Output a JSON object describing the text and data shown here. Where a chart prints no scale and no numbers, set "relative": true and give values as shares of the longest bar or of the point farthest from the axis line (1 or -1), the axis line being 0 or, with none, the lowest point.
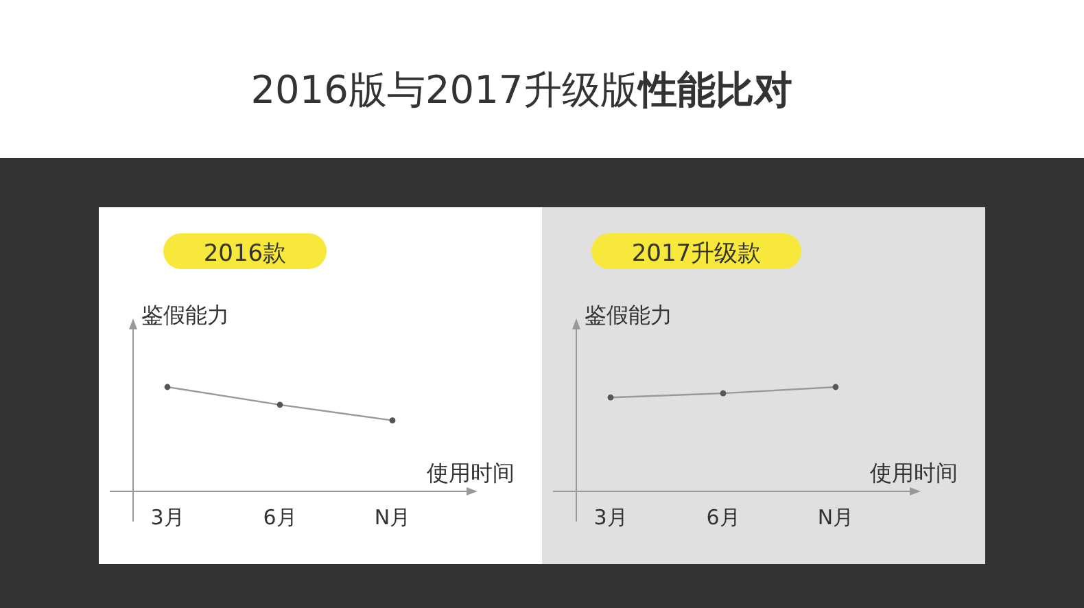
{
  "chart_data": [
    {
      "type": "other",
      "title": "2016版与2017升级版**性能比对**"
    },
    {
      "type": "line",
      "title": "2016款",
      "relative": true,
      "xlabel": "使用时间",
      "ylabel": "鉴假能力",
      "categories": [
        "3月",
        "6月",
        "N月"
      ],
      "series": [
        {
          "color": "#999999",
          "values": [
            1,
            0.83,
            0.68
          ]
        }
      ],
      "marker": "circle",
      "grid": false
    },
    {
      "type": "line",
      "title": "2017升级款",
      "relative": true,
      "xlabel": "使用时间",
      "ylabel": "鉴假能力",
      "categories": [
        "3月",
        "6月",
        "N月"
      ],
      "series": [
        {
          "color": "#999999",
          "values": [
            0.9,
            0.94,
            1
          ]
        }
      ],
      "marker": "circle",
      "grid": false
    }
  ]
}
